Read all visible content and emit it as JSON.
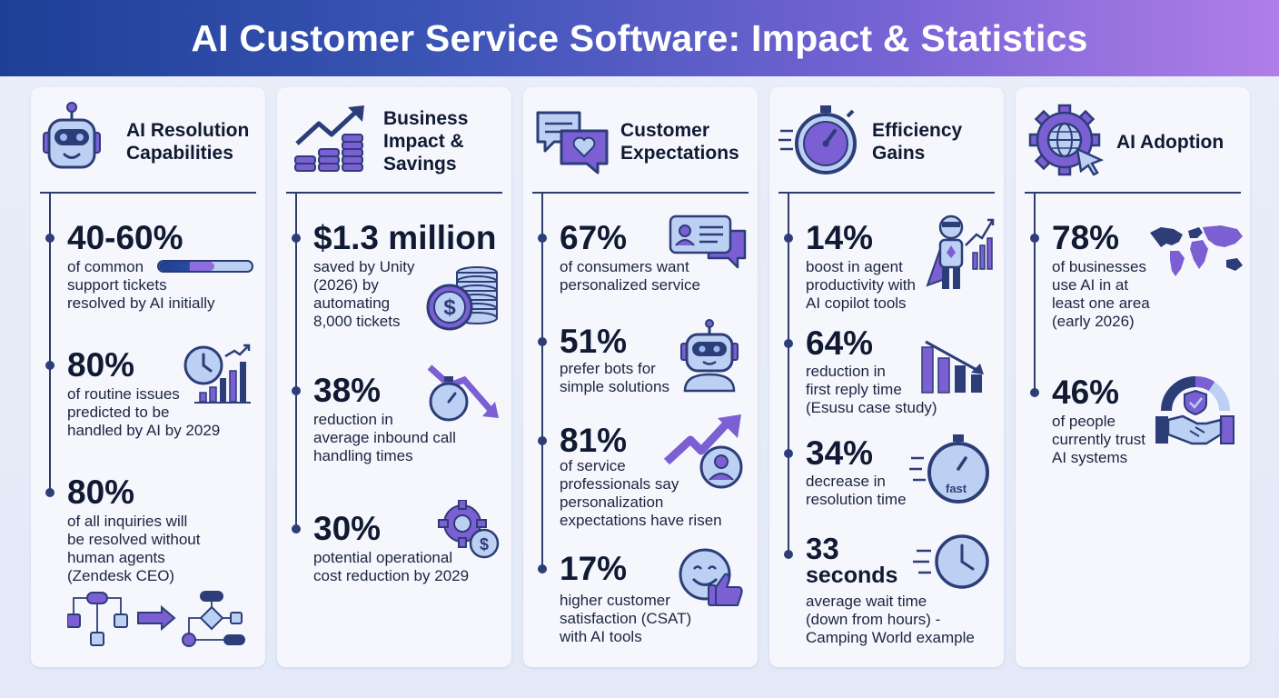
{
  "header": {
    "title": "AI Customer Service Software: Impact & Statistics"
  },
  "colors": {
    "navy": "#2d3d78",
    "purple": "#7b5fd3",
    "lightblue": "#bcd0f3"
  },
  "columns": [
    {
      "title": "AI Resolution Capabilities",
      "title_lines": [
        "AI Resolution",
        "Capabilities"
      ],
      "icon": "robot-icon",
      "stats": [
        {
          "value": "40-60%",
          "desc": "of common\nsupport tickets\nresolved by AI initially",
          "progress_range": [
            0.4,
            0.6
          ]
        },
        {
          "value": "80%",
          "desc": "of routine issues\npredicted to be\nhandled by AI by 2029"
        },
        {
          "value": "80%",
          "desc": "of all inquiries will\nbe resolved without\nhuman agents\n(Zendesk CEO)"
        }
      ]
    },
    {
      "title": "Business Impact & Savings",
      "title_lines": [
        "Business",
        "Impact &",
        "Savings"
      ],
      "icon": "growth-coins-icon",
      "stats": [
        {
          "value": "$1.3 million",
          "desc": "saved by Unity\n(2026) by\nautomating\n8,000 tickets"
        },
        {
          "value": "38%",
          "desc": "reduction in\naverage inbound call\nhandling times"
        },
        {
          "value": "30%",
          "desc": "potential operational\ncost reduction by 2029"
        }
      ]
    },
    {
      "title": "Customer Expectations",
      "title_lines": [
        "Customer",
        "Expectations"
      ],
      "icon": "chat-heart-icon",
      "stats": [
        {
          "value": "67%",
          "desc": "of consumers want\npersonalized service"
        },
        {
          "value": "51%",
          "desc": "prefer bots for\nsimple solutions"
        },
        {
          "value": "81%",
          "desc": "of service\nprofessionals say\npersonalization\nexpectations have risen"
        },
        {
          "value": "17%",
          "desc": "higher customer\nsatisfaction (CSAT)\nwith AI tools"
        }
      ]
    },
    {
      "title": "Efficiency Gains",
      "title_lines": [
        "Efficiency",
        "Gains"
      ],
      "icon": "stopwatch-icon",
      "stats": [
        {
          "value": "14%",
          "desc": "boost in agent\nproductivity with\nAI copilot tools"
        },
        {
          "value": "64%",
          "desc": "reduction in\nfirst reply time\n(Esusu case study)"
        },
        {
          "value": "34%",
          "desc": "decrease in\nresolution time",
          "icon_label": "fast"
        },
        {
          "value": "33\nseconds",
          "value_lines": [
            "33",
            "seconds"
          ],
          "desc": "average wait time\n(down from hours) -\nCamping World example"
        }
      ]
    },
    {
      "title": "AI Adoption",
      "title_lines": [
        "AI Adoption"
      ],
      "icon": "gear-globe-icon",
      "stats": [
        {
          "value": "78%",
          "desc": "of businesses\nuse AI in at\nleast one area\n(early 2026)"
        },
        {
          "value": "46%",
          "desc": "of people\ncurrently trust\nAI systems"
        }
      ]
    }
  ]
}
